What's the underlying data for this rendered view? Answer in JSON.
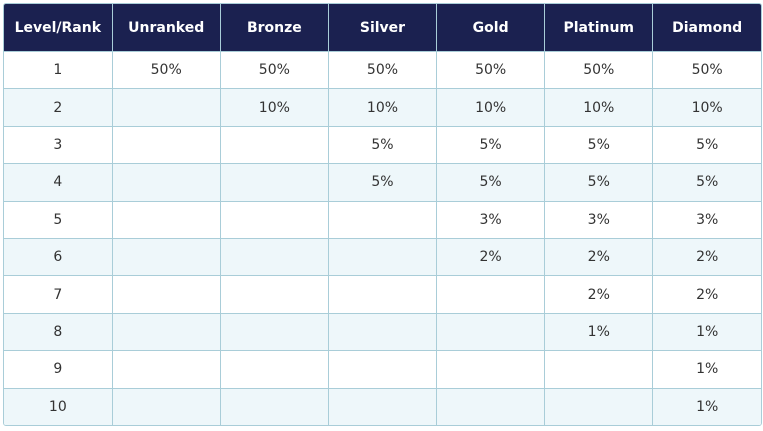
{
  "table": {
    "header": [
      "Level/Rank",
      "Unranked",
      "Bronze",
      "Silver",
      "Gold",
      "Platinum",
      "Diamond"
    ],
    "rows": [
      [
        "1",
        "50%",
        "50%",
        "50%",
        "50%",
        "50%",
        "50%"
      ],
      [
        "2",
        null,
        "10%",
        "10%",
        "10%",
        "10%",
        "10%"
      ],
      [
        "3",
        null,
        null,
        "5%",
        "5%",
        "5%",
        "5%"
      ],
      [
        "4",
        null,
        null,
        "5%",
        "5%",
        "5%",
        "5%"
      ],
      [
        "5",
        null,
        null,
        null,
        "3%",
        "3%",
        "3%"
      ],
      [
        "6",
        null,
        null,
        null,
        "2%",
        "2%",
        "2%"
      ],
      [
        "7",
        null,
        null,
        null,
        null,
        "2%",
        "2%"
      ],
      [
        "8",
        null,
        null,
        null,
        null,
        "1%",
        "1%"
      ],
      [
        "9",
        null,
        null,
        null,
        null,
        null,
        "1%"
      ],
      [
        "10",
        null,
        null,
        null,
        null,
        null,
        "1%"
      ]
    ]
  }
}
